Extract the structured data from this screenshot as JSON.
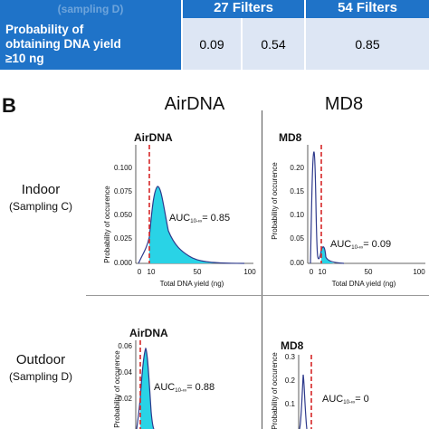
{
  "table": {
    "header_partial": "(sampling D)",
    "columns": [
      "27 Filters",
      "54 Filters"
    ],
    "row": {
      "label": "Probability of\nobtaining DNA yield\n≥10 ng",
      "values": [
        "0.09",
        "0.54",
        "0.85"
      ]
    }
  },
  "panel_b": {
    "label": "B",
    "col_headers": [
      "AirDNA",
      "MD8"
    ],
    "rows": [
      {
        "title": "Indoor",
        "sub": "(Sampling C)"
      },
      {
        "title": "Outdoor",
        "sub": "(Sampling D)"
      }
    ],
    "plots": [
      {
        "title": "AirDNA",
        "auc": "= 0.85",
        "yticks": [
          "0.000",
          "0.025",
          "0.050",
          "0.075",
          "0.100"
        ],
        "xticks": [
          "0",
          "10",
          "50",
          "100"
        ],
        "ylabel": "Probability of occurence",
        "xlabel": "Total DNA yield (ng)"
      },
      {
        "title": "MD8",
        "auc": "= 0.09",
        "yticks": [
          "0.00",
          "0.05",
          "0.10",
          "0.15",
          "0.20"
        ],
        "xticks": [
          "0",
          "10",
          "50",
          "100"
        ],
        "ylabel": "Probability of occurence",
        "xlabel": "Total DNA yield (ng)"
      },
      {
        "title": "AirDNA",
        "auc": "= 0.88",
        "yticks": [
          "0.06",
          "0.04",
          "0.02"
        ],
        "ylabel": "Probability of occurence"
      },
      {
        "title": "MD8",
        "auc": "= 0",
        "yticks": [
          "0.3",
          "0.2",
          "0.1"
        ],
        "ylabel": "Probability of occurence"
      }
    ],
    "auc_prefix": "AUC",
    "auc_sub": "10-∞"
  },
  "colors": {
    "table_blue": "#1f73c8",
    "table_cell": "#dde6f4",
    "fill": "#29d3e6",
    "line": "#2e3a8c",
    "threshold": "#d62728"
  }
}
